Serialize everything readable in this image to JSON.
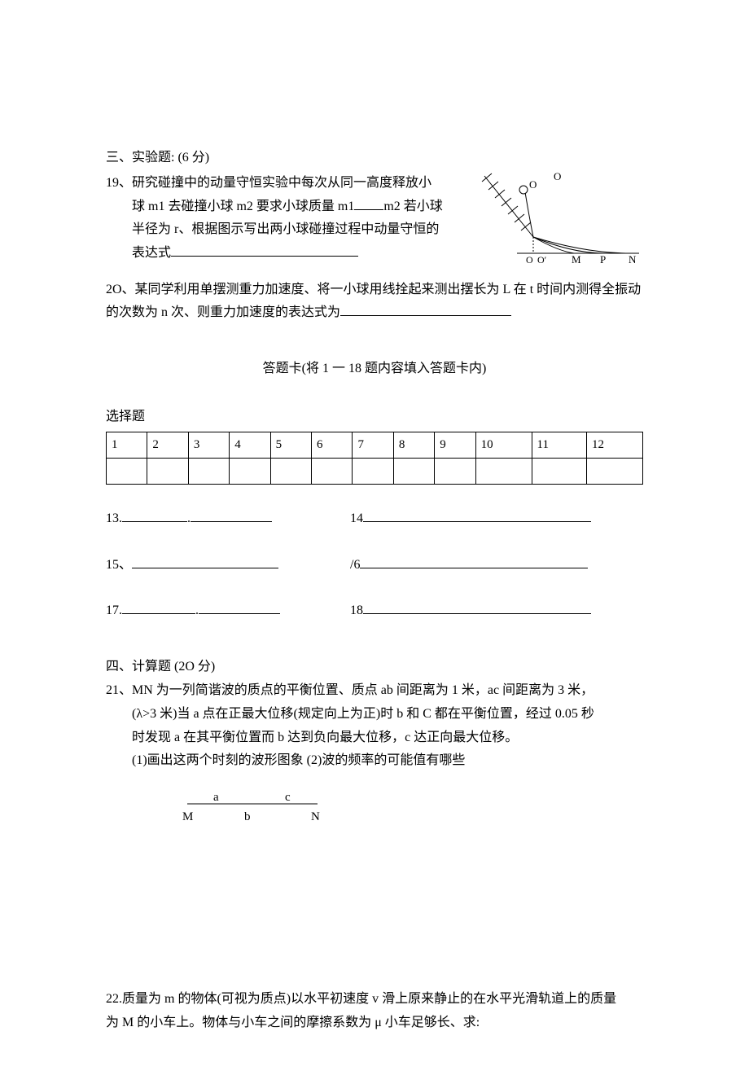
{
  "section3": {
    "title": "三、实验题: (6 分)",
    "q19": {
      "label": "19、",
      "line1": "研究碰撞中的动量守恒实验中每次从同一高度释放小",
      "line2a": "球 m1 去碰撞小球 m2 要求小球质量 m1",
      "line2b": "m2 若小球",
      "line3": "半径为 r、根据图示写出两小球碰撞过程中动量守恒的",
      "line4": "表达式",
      "fig": {
        "label_top": "O",
        "label_ball": "O",
        "label_Oprime1": "O",
        "label_Oprime2": "O′",
        "label_M": "M",
        "label_P": "P",
        "label_N": "N",
        "colors": {
          "stroke": "#000000",
          "fill": "#ffffff"
        },
        "line_width": 1
      }
    },
    "q20": {
      "text_a": "2O、某同学利用单摆测重力加速度、将一小球用线拴起来测出摆长为 L 在 t 时间内测得全振动的次数为 n 次、则重力加速度的表达式为",
      "blank_width": 210
    }
  },
  "answer_card": {
    "title": "答题卡(将 1 一 18 题内容填入答题卡内)",
    "select_label": "选择题",
    "columns": [
      "1",
      "2",
      "3",
      "4",
      "5",
      "6",
      "7",
      "8",
      "9",
      "10",
      "11",
      "12"
    ],
    "fills": [
      {
        "l_num": "13.",
        "l_w1": 80,
        "l_dot": ".",
        "l_w2": 100,
        "r_num": "14",
        "r_w": 280
      },
      {
        "l_num": "15、",
        "l_w1": 180,
        "l_dot": "",
        "l_w2": 0,
        "r_num": "/6",
        "r_w": 280
      },
      {
        "l_num": "17.",
        "l_w1": 90,
        "l_dot": ".",
        "l_w2": 100,
        "r_num": "18",
        "r_w": 280
      }
    ]
  },
  "section4": {
    "title": "四、计算题  (2O 分)",
    "q21": {
      "label": "21、",
      "line1": "MN 为一列简谐波的质点的平衡位置、质点 ab 间距离为 1 米，ac 间距离为 3 米，",
      "line2": "(λ>3 米)当 a 点在正最大位移(规定向上为正)时 b 和 C 都在平衡位置，经过 0.05 秒",
      "line3": "时发现 a 在其平衡位置而 b 达到负向最大位移，c 达正向最大位移。",
      "line4": "(1)画出这两个时刻的波形图象    (2)波的频率的可能值有哪些",
      "fig": {
        "a": "a",
        "b": "b",
        "c": "c",
        "M": "M",
        "N": "N",
        "stroke": "#000000"
      }
    },
    "q22": {
      "label": "22.",
      "line1": "质量为 m 的物体(可视为质点)以水平初速度 v 滑上原来静止的在水平光滑轨道上的质量",
      "line2": "为 M 的小车上。物体与小车之间的摩擦系数为 μ 小车足够长、求:"
    }
  }
}
